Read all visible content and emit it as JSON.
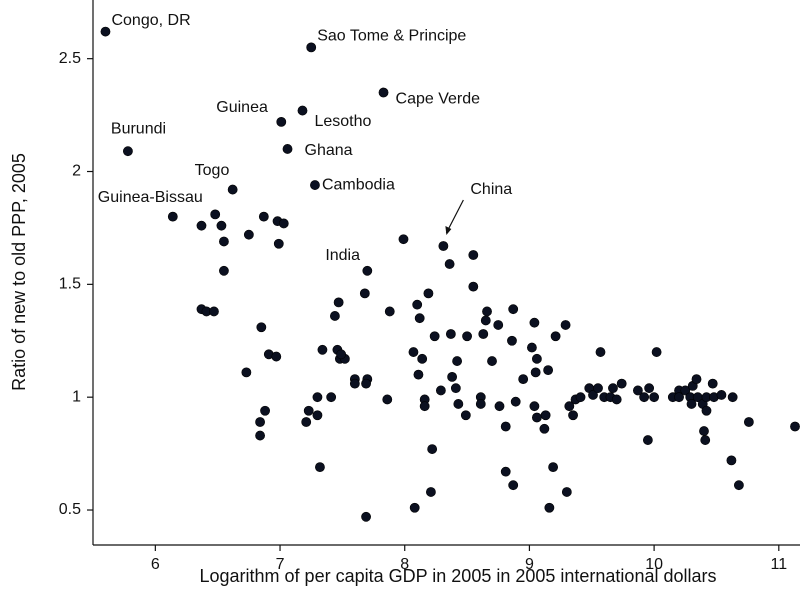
{
  "chart_data": {
    "type": "scatter",
    "x_label": "Logarithm of per capita GDP in 2005 in 2005 international dollars",
    "y_label": "Ratio of new to old PPP, 2005",
    "color": "#0b1020",
    "xlim": [
      5.5,
      11.17
    ],
    "xticks": [
      6,
      7,
      8,
      9,
      10,
      11
    ],
    "ylim": [
      0.345,
      2.76
    ],
    "yticks": [
      0.5,
      1,
      1.5,
      2,
      2.5
    ],
    "grid": false,
    "x": [
      5.6,
      7.25,
      7.83,
      7.01,
      7.18,
      5.78,
      7.06,
      6.62,
      7.28,
      6.14,
      8.31,
      7.7,
      6.48,
      6.53,
      6.37,
      6.55,
      6.75,
      6.87,
      6.98,
      7.03,
      6.99,
      6.55,
      7.99,
      8.55,
      8.36,
      8.55,
      8.19,
      8.1,
      7.47,
      7.44,
      7.88,
      7.68,
      8.12,
      6.37,
      6.41,
      6.47,
      6.85,
      8.37,
      8.24,
      8.5,
      8.63,
      8.66,
      8.65,
      8.75,
      8.87,
      8.86,
      8.7,
      8.42,
      8.07,
      8.14,
      8.11,
      9.02,
      9.04,
      9.21,
      9.29,
      9.06,
      9.05,
      9.15,
      8.95,
      8.38,
      8.29,
      8.41,
      8.61,
      8.61,
      8.43,
      8.16,
      8.16,
      8.49,
      8.76,
      8.89,
      9.04,
      9.06,
      9.13,
      9.12,
      8.81,
      7.34,
      7.46,
      7.48,
      7.52,
      7.49,
      6.91,
      6.97,
      6.73,
      7.6,
      7.7,
      7.6,
      7.69,
      7.3,
      7.41,
      7.86,
      6.88,
      6.84,
      7.23,
      7.3,
      7.21,
      6.84,
      7.32,
      7.69,
      8.08,
      8.21,
      8.22,
      8.81,
      8.87,
      9.19,
      9.16,
      9.3,
      9.32,
      9.35,
      9.37,
      9.41,
      9.48,
      9.51,
      9.55,
      9.57,
      9.6,
      9.65,
      9.67,
      9.7,
      9.74,
      9.87,
      9.92,
      9.96,
      9.95,
      10.0,
      10.02,
      10.15,
      10.2,
      10.2,
      10.25,
      10.29,
      10.31,
      10.34,
      10.3,
      10.35,
      10.39,
      10.42,
      10.42,
      10.4,
      10.41,
      10.47,
      10.48,
      10.54,
      10.63,
      10.62,
      10.68,
      10.76,
      11.13
    ],
    "values": [
      2.62,
      2.55,
      2.35,
      2.22,
      2.27,
      2.09,
      2.1,
      1.92,
      1.94,
      1.8,
      1.67,
      1.56,
      1.81,
      1.76,
      1.76,
      1.69,
      1.72,
      1.8,
      1.78,
      1.77,
      1.68,
      1.56,
      1.7,
      1.63,
      1.59,
      1.49,
      1.46,
      1.41,
      1.42,
      1.36,
      1.38,
      1.46,
      1.35,
      1.39,
      1.38,
      1.38,
      1.31,
      1.28,
      1.27,
      1.27,
      1.28,
      1.38,
      1.34,
      1.32,
      1.39,
      1.25,
      1.16,
      1.16,
      1.2,
      1.17,
      1.1,
      1.22,
      1.33,
      1.27,
      1.32,
      1.17,
      1.11,
      1.12,
      1.08,
      1.09,
      1.03,
      1.04,
      1.0,
      0.97,
      0.97,
      0.99,
      0.96,
      0.92,
      0.96,
      0.98,
      0.96,
      0.91,
      0.92,
      0.86,
      0.87,
      1.21,
      1.21,
      1.17,
      1.17,
      1.19,
      1.19,
      1.18,
      1.11,
      1.08,
      1.08,
      1.06,
      1.06,
      1.0,
      1.0,
      0.99,
      0.94,
      0.89,
      0.94,
      0.92,
      0.89,
      0.83,
      0.69,
      0.47,
      0.51,
      0.58,
      0.77,
      0.67,
      0.61,
      0.69,
      0.51,
      0.58,
      0.96,
      0.92,
      0.99,
      1.0,
      1.04,
      1.01,
      1.04,
      1.2,
      1.0,
      1.0,
      1.04,
      0.99,
      1.06,
      1.03,
      1.0,
      1.04,
      0.81,
      1.0,
      1.2,
      1.0,
      1.03,
      1.0,
      1.03,
      1.0,
      1.05,
      1.08,
      0.97,
      1.0,
      0.97,
      1.0,
      0.94,
      0.85,
      0.81,
      1.06,
      1.0,
      1.01,
      1.0,
      0.72,
      0.61,
      0.89,
      0.87
    ],
    "point_labels": [
      "Congo, DR",
      "Sao Tome & Principe",
      "Cape Verde",
      "Guinea",
      "Lesotho",
      "Burundi",
      "Ghana",
      "Togo",
      "Cambodia",
      "Guinea-Bissau",
      "China",
      "India",
      null,
      null,
      null,
      null,
      null,
      null,
      null,
      null,
      null,
      null,
      null,
      null,
      null,
      null,
      null,
      null,
      null,
      null,
      null,
      null,
      null,
      null,
      null,
      null,
      null,
      null,
      null,
      null,
      null,
      null,
      null,
      null,
      null,
      null,
      null,
      null,
      null,
      null,
      null,
      null,
      null,
      null,
      null,
      null,
      null,
      null,
      null,
      null,
      null,
      null,
      null,
      null,
      null,
      null,
      null,
      null,
      null,
      null,
      null,
      null,
      null,
      null,
      null,
      null,
      null,
      null,
      null,
      null,
      null,
      null,
      null,
      null,
      null,
      null,
      null,
      null,
      null,
      null,
      null,
      null,
      null,
      null,
      null,
      null,
      null,
      null,
      null,
      null,
      null,
      null,
      null,
      null,
      null,
      null,
      null,
      null,
      null,
      null,
      null,
      null,
      null,
      null,
      null,
      null,
      null,
      null,
      null,
      null,
      null,
      null,
      null,
      null,
      null,
      null,
      null,
      null,
      null,
      null,
      null,
      null,
      null,
      null,
      null,
      null,
      null,
      null,
      null,
      null,
      null,
      null,
      null,
      null,
      null,
      null,
      null
    ]
  }
}
